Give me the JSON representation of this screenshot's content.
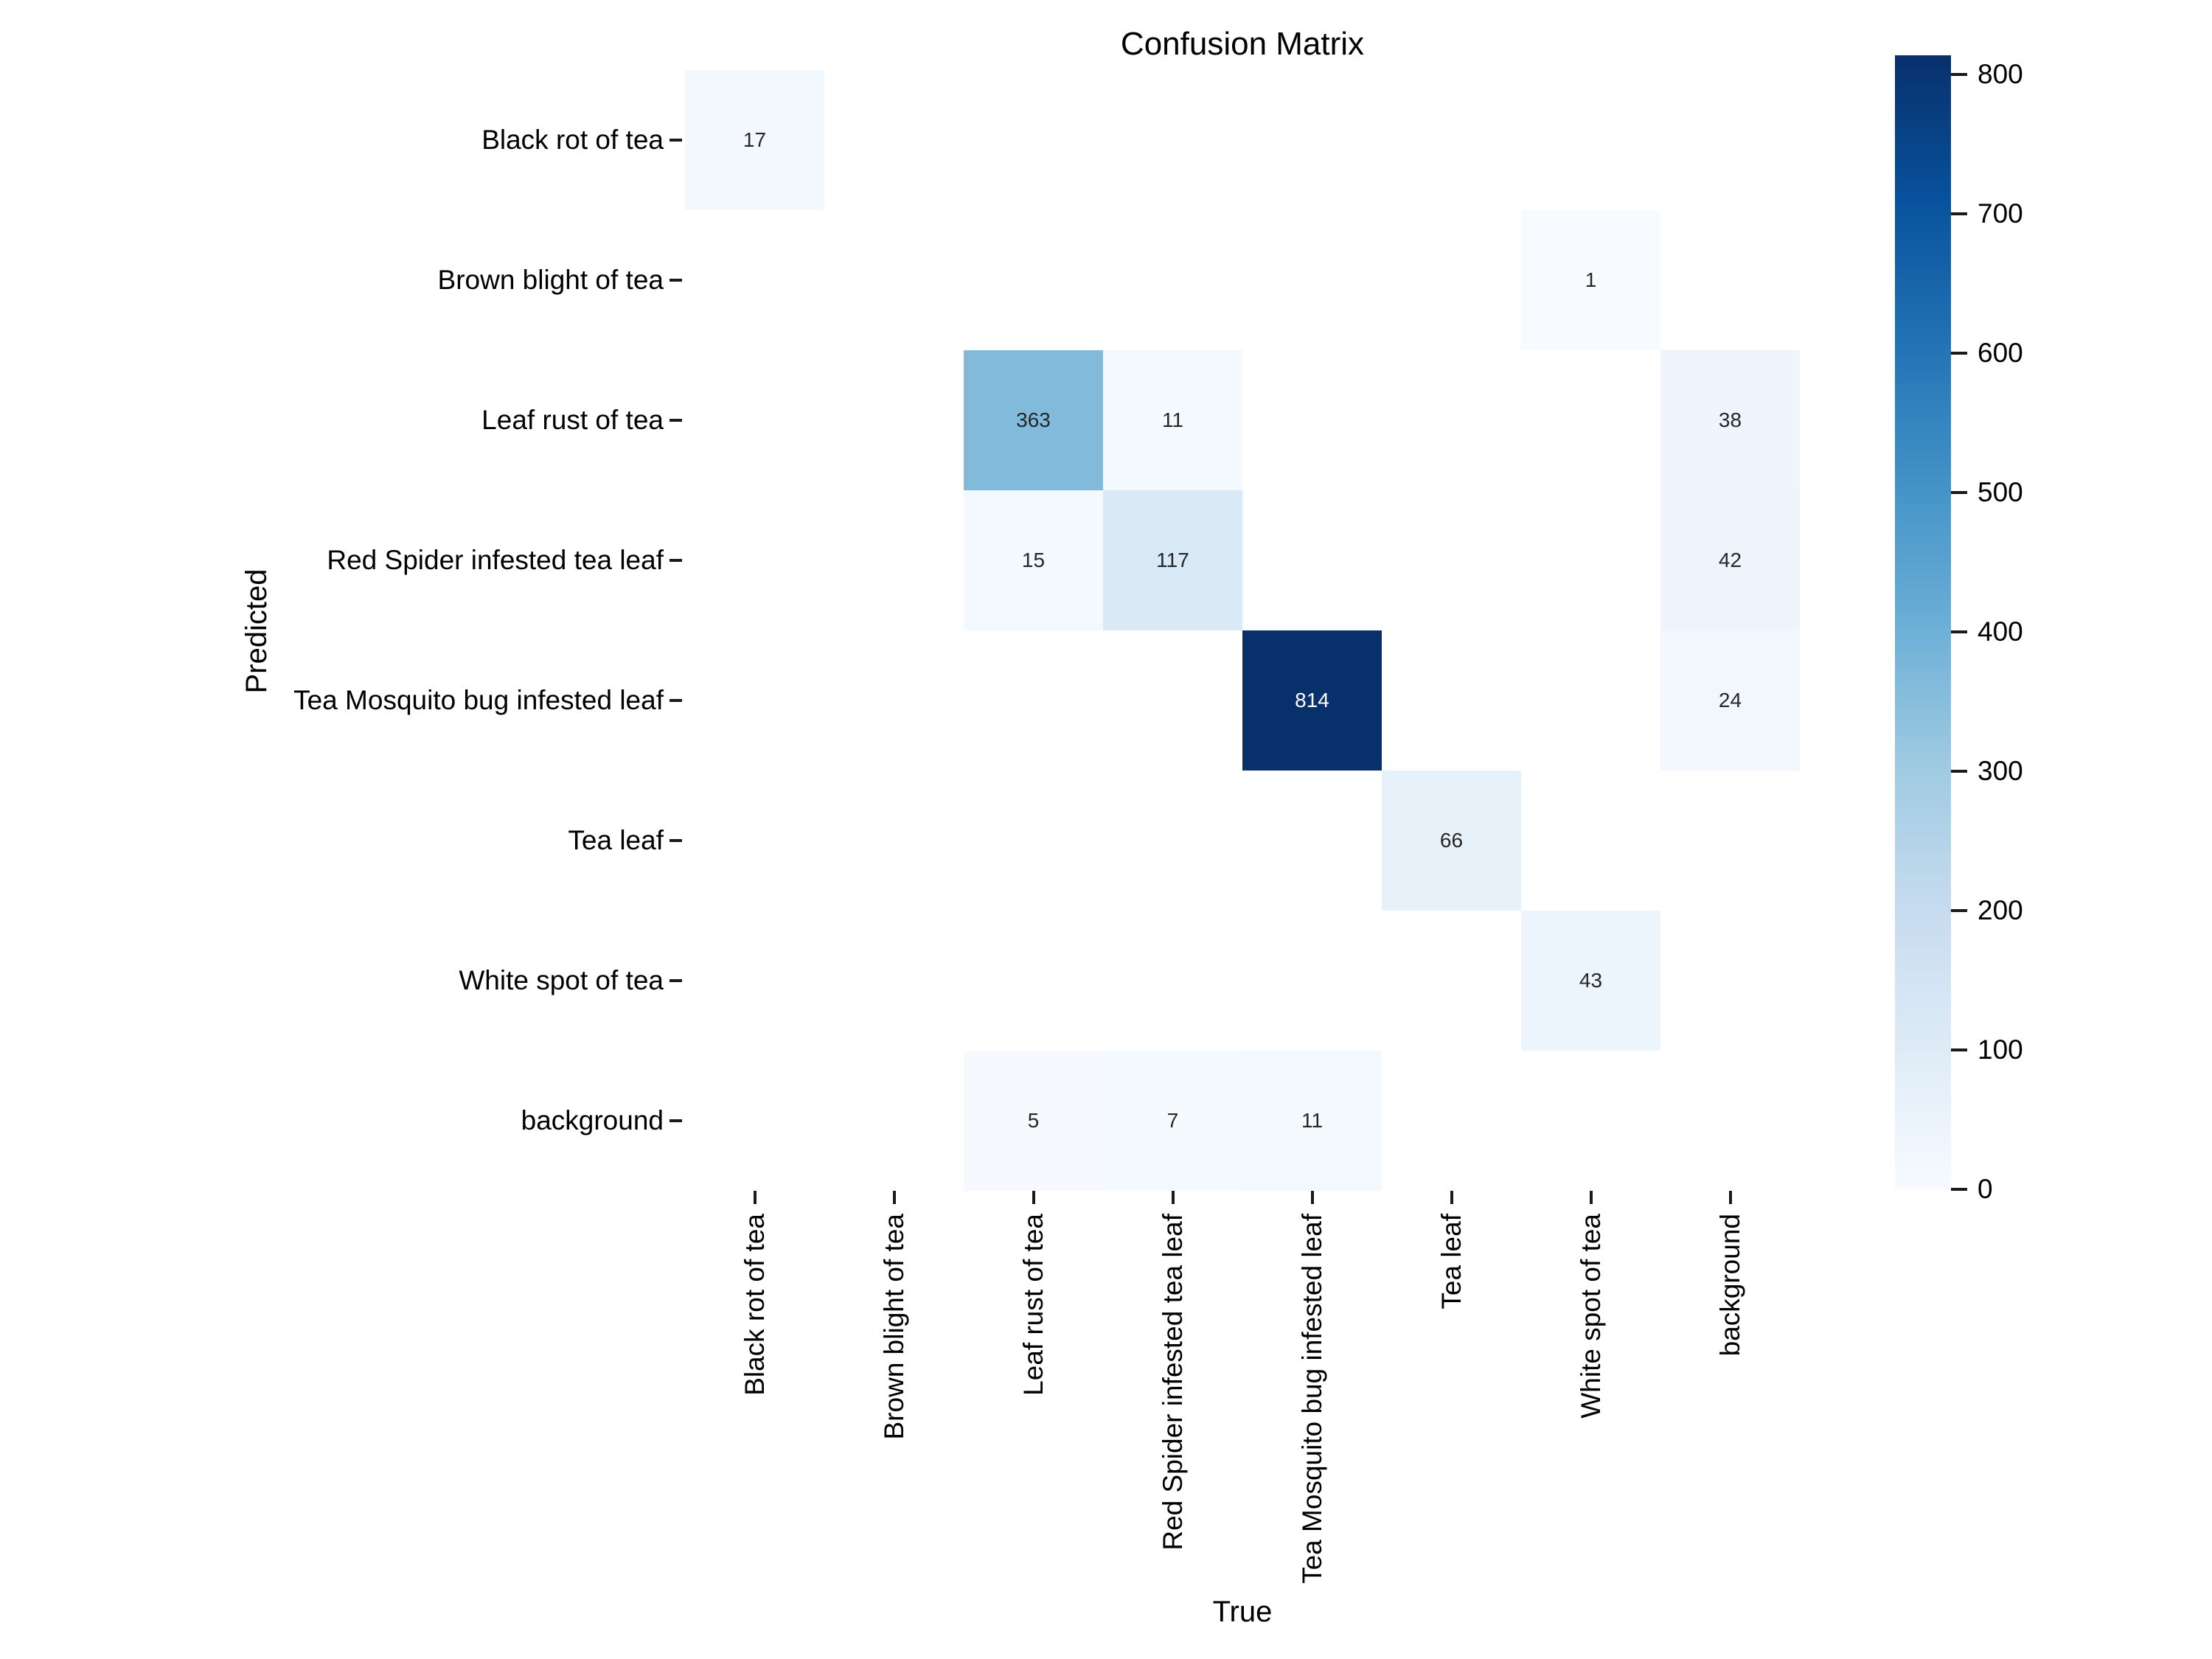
{
  "chart_data": {
    "type": "heatmap",
    "title": "Confusion Matrix",
    "xlabel": "True",
    "ylabel": "Predicted",
    "x_categories": [
      "Black rot of tea",
      "Brown blight of tea",
      "Leaf rust of tea",
      "Red Spider infested tea leaf",
      "Tea Mosquito bug infested leaf",
      "Tea leaf",
      "White spot of tea",
      "background"
    ],
    "y_categories": [
      "Black rot of tea",
      "Brown blight of tea",
      "Leaf rust of tea",
      "Red Spider infested tea leaf",
      "Tea Mosquito bug infested leaf",
      "Tea leaf",
      "White spot of tea",
      "background"
    ],
    "matrix": [
      [
        17,
        0,
        0,
        0,
        0,
        0,
        0,
        0
      ],
      [
        0,
        0,
        0,
        0,
        0,
        0,
        1,
        0
      ],
      [
        0,
        0,
        363,
        11,
        0,
        0,
        0,
        38
      ],
      [
        0,
        0,
        15,
        117,
        0,
        0,
        0,
        42
      ],
      [
        0,
        0,
        0,
        0,
        814,
        0,
        0,
        24
      ],
      [
        0,
        0,
        0,
        0,
        0,
        66,
        0,
        0
      ],
      [
        0,
        0,
        0,
        0,
        0,
        0,
        43,
        0
      ],
      [
        0,
        0,
        5,
        7,
        11,
        0,
        0,
        0
      ]
    ],
    "zeros_blank": true,
    "vmin": 0,
    "vmax": 814,
    "colormap": "Blues",
    "colormap_stops": [
      "#f7fbff",
      "#deebf7",
      "#c6dbef",
      "#9ecae1",
      "#6baed6",
      "#4292c6",
      "#2171b5",
      "#08519c",
      "#08306b"
    ],
    "colorbar_ticks": [
      800,
      700,
      600,
      500,
      400,
      300,
      200,
      100,
      0
    ],
    "legend_position": "right",
    "grid": false,
    "colors": {
      "background": "#ffffff",
      "zero_cell": "#ffffff",
      "tick_mark": "#1a1a1a",
      "label_text": "#000000",
      "annotation_dark": "#262626",
      "annotation_light": "#ffffff"
    }
  }
}
